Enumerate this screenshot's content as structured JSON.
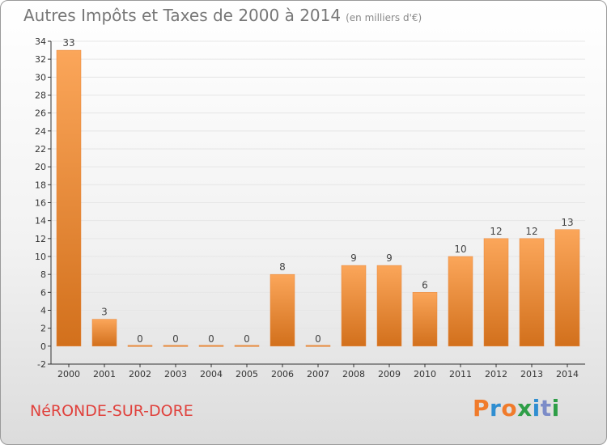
{
  "header": {
    "title": "Autres Impôts et Taxes de 2000 à 2014",
    "subtitle": "(en milliers d'€)"
  },
  "footer": {
    "commune": "NéRONDE-SUR-DORE",
    "logo": "Proxiti"
  },
  "colors": {
    "bar_light": "#fba65a",
    "bar_dark": "#d2701c",
    "axis": "#333333",
    "grid": "#e6e6e6",
    "commune_text": "#e0413c",
    "logo_letters": [
      "#f07b2b",
      "#2f8ed1",
      "#f07b2b",
      "#2e9e47",
      "#2f8ed1",
      "#7c8cc8",
      "#2e9e47"
    ]
  },
  "chart_data": {
    "type": "bar",
    "title": "Autres Impôts et Taxes de 2000 à 2014",
    "subtitle": "(en milliers d'€)",
    "categories": [
      "2000",
      "2001",
      "2002",
      "2003",
      "2004",
      "2005",
      "2006",
      "2007",
      "2008",
      "2009",
      "2010",
      "2011",
      "2012",
      "2013",
      "2014"
    ],
    "values": [
      33,
      3,
      0,
      0,
      0,
      0,
      8,
      0,
      9,
      9,
      6,
      10,
      12,
      12,
      13
    ],
    "data_labels": [
      "33",
      "3",
      "0",
      "0",
      "0",
      "0",
      "8",
      "0",
      "9",
      "9",
      "6",
      "10",
      "12",
      "12",
      "13"
    ],
    "yticks": [
      -2,
      0,
      2,
      4,
      6,
      8,
      10,
      12,
      14,
      16,
      18,
      20,
      22,
      24,
      26,
      28,
      30,
      32,
      34
    ],
    "ylim": [
      -2,
      34
    ],
    "xlabel": "",
    "ylabel": "",
    "grid": true,
    "legend": "none"
  }
}
